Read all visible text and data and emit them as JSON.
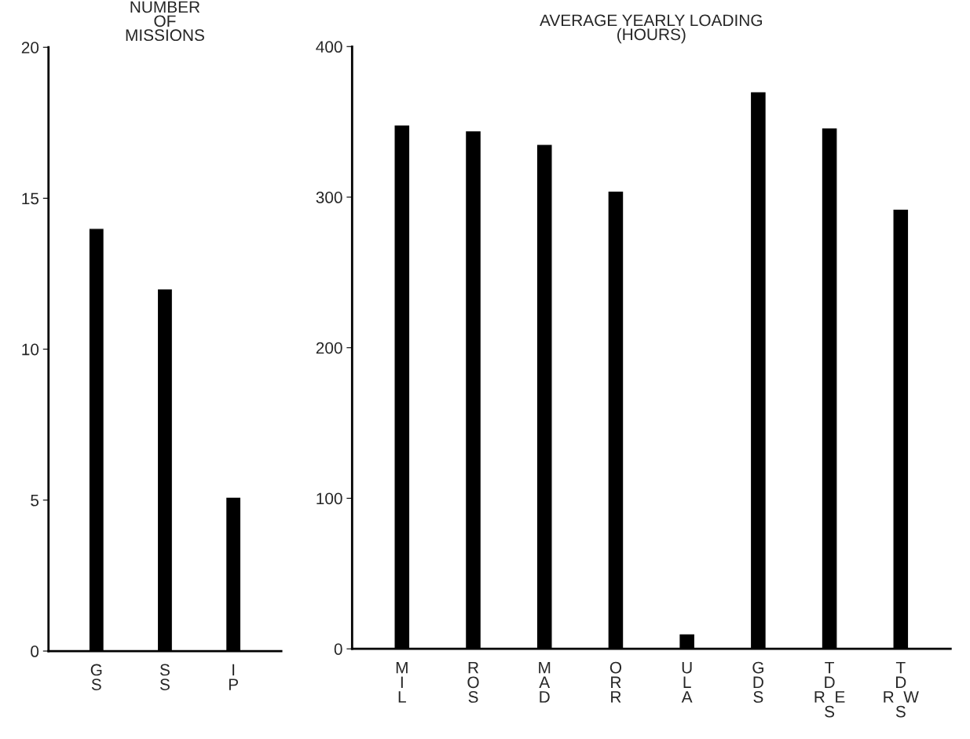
{
  "chart_data": [
    {
      "type": "bar",
      "title": "NUMBER\nOF\nMISSIONS",
      "categories": [
        "G\nS",
        "S\nS",
        "I\nP"
      ],
      "values": [
        14,
        12,
        5.1
      ],
      "color": "#000000",
      "ylim": [
        0,
        20
      ],
      "yticks": [
        0,
        5,
        10,
        15,
        20
      ],
      "grid": false
    },
    {
      "type": "bar",
      "title": "AVERAGE YEARLY LOADING\n(HOURS)",
      "categories": [
        "M\nI\nL",
        "R\nO\nS",
        "M\nA\nD",
        "O\nR\nR",
        "U\nL\nA",
        "G\nD\nS",
        "T\nD\nR  E\nS",
        "T\nD\nR  W\nS"
      ],
      "values": [
        348,
        344,
        335,
        304,
        10,
        370,
        346,
        292
      ],
      "color": "#000000",
      "ylim": [
        0,
        400
      ],
      "yticks": [
        0,
        100,
        200,
        300,
        400
      ],
      "grid": false
    }
  ]
}
